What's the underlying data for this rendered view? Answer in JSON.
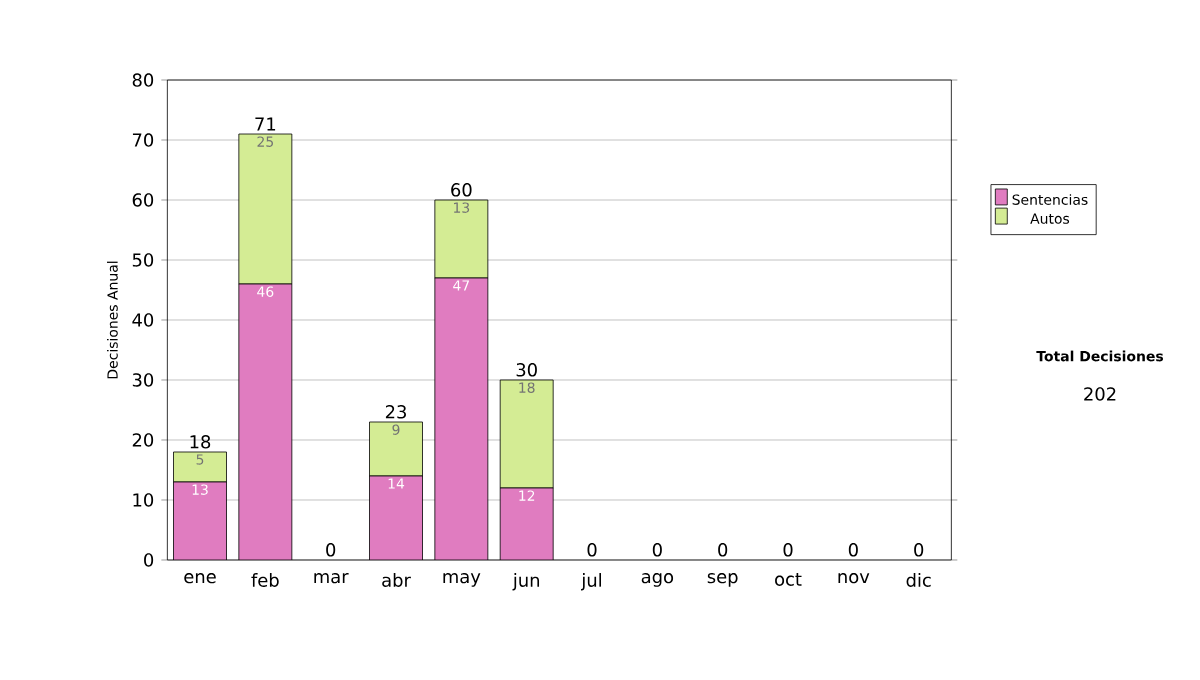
{
  "chart_data": {
    "type": "bar",
    "stacked": true,
    "categories": [
      "ene",
      "feb",
      "mar",
      "abr",
      "may",
      "jun",
      "jul",
      "ago",
      "sep",
      "oct",
      "nov",
      "dic"
    ],
    "ylabel": "Decisiones Anual",
    "series": [
      {
        "name": "Sentencias",
        "color": "#e07cc0",
        "values": [
          13,
          46,
          0,
          14,
          47,
          12,
          0,
          0,
          0,
          0,
          0,
          0
        ],
        "value_labels": [
          "13",
          "46",
          null,
          "14",
          "47",
          "12",
          null,
          null,
          null,
          null,
          null,
          null
        ]
      },
      {
        "name": "Autos",
        "color": "#d4ec94",
        "values": [
          5,
          25,
          0,
          9,
          13,
          18,
          0,
          0,
          0,
          0,
          0,
          0
        ],
        "value_labels": [
          "5",
          "25",
          null,
          "9",
          "13",
          "18",
          null,
          null,
          null,
          null,
          null,
          null
        ]
      }
    ],
    "totals": [
      "18",
      "71",
      "0",
      "23",
      "60",
      "30",
      "0",
      "0",
      "0",
      "0",
      "0",
      "0"
    ],
    "ylim": [
      0,
      80
    ],
    "yticks": [
      0,
      10,
      20,
      30,
      40,
      50,
      60,
      70,
      80
    ],
    "grid": "y",
    "legend": "right",
    "annotations": [
      "Total Decisiones",
      "202"
    ]
  }
}
